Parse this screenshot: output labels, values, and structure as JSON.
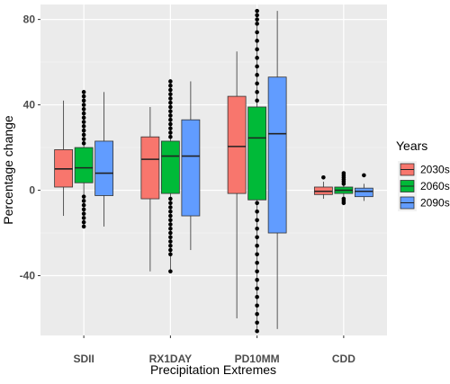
{
  "chart_data": {
    "type": "boxplot",
    "xlabel": "Precipitation Extremes",
    "ylabel": "Percentage change",
    "ylim": [
      -68,
      87
    ],
    "yticks": [
      -40,
      0,
      40,
      80
    ],
    "grid": true,
    "legend": {
      "title": "Years",
      "position": "right",
      "entries": [
        "2030s",
        "2060s",
        "2090s"
      ]
    },
    "categories": [
      "SDII",
      "RX1DAY",
      "PD10MM",
      "CDD"
    ],
    "series": [
      {
        "name": "2030s",
        "color": "#F8766D",
        "boxes": [
          {
            "min": -12,
            "q1": 1.5,
            "median": 10,
            "q3": 19,
            "max": 42,
            "outliers": []
          },
          {
            "min": -38,
            "q1": -4,
            "median": 14.5,
            "q3": 25,
            "max": 39,
            "outliers": []
          },
          {
            "min": -60,
            "q1": -1.5,
            "median": 20.5,
            "q3": 44,
            "max": 65,
            "outliers": []
          },
          {
            "min": -4,
            "q1": -2,
            "median": -0.5,
            "q3": 1.5,
            "max": 4,
            "outliers": [
              6
            ]
          }
        ]
      },
      {
        "name": "2060s",
        "color": "#00BA38",
        "boxes": [
          {
            "min": -17,
            "q1": 3.5,
            "median": 10.5,
            "q3": 20,
            "max": 46,
            "outliers": [
              -17,
              -15,
              -13,
              -11,
              -9,
              -7,
              -5,
              -3,
              22,
              24,
              26,
              28,
              30,
              32,
              34,
              36,
              38,
              40,
              42,
              44,
              46
            ]
          },
          {
            "min": -38,
            "q1": -1.5,
            "median": 16,
            "q3": 23,
            "max": 51,
            "outliers": [
              -38,
              -30,
              -28,
              -26,
              -24,
              -22,
              -20,
              -18,
              -16,
              -14,
              -12,
              -10,
              -8,
              -6,
              -4,
              25,
              27,
              29,
              31,
              33,
              35,
              37,
              39,
              41,
              43,
              45,
              47,
              49,
              51
            ]
          },
          {
            "min": -66,
            "q1": -4.5,
            "median": 24.5,
            "q3": 39,
            "max": 84,
            "outliers": [
              -66,
              -62,
              -58,
              -54,
              -50,
              -46,
              -42,
              -38,
              -34,
              -30,
              -26,
              -22,
              -18,
              -14,
              -10,
              -6,
              42,
              46,
              50,
              54,
              58,
              62,
              66,
              70,
              74,
              78,
              80,
              82,
              84
            ]
          },
          {
            "min": -6,
            "q1": -1.5,
            "median": 0,
            "q3": 1.5,
            "max": 8,
            "outliers": [
              -6,
              -5,
              -4,
              3,
              4,
              5,
              6,
              7,
              8
            ]
          }
        ]
      },
      {
        "name": "2090s",
        "color": "#619CFF",
        "boxes": [
          {
            "min": -17,
            "q1": -2.5,
            "median": 8,
            "q3": 23,
            "max": 46,
            "outliers": []
          },
          {
            "min": -28,
            "q1": -12,
            "median": 16,
            "q3": 33,
            "max": 51,
            "outliers": []
          },
          {
            "min": -65,
            "q1": -20,
            "median": 26.5,
            "q3": 53,
            "max": 84,
            "outliers": []
          },
          {
            "min": -5,
            "q1": -3,
            "median": -0.5,
            "q3": 1,
            "max": 3,
            "outliers": [
              7
            ]
          }
        ]
      }
    ]
  }
}
